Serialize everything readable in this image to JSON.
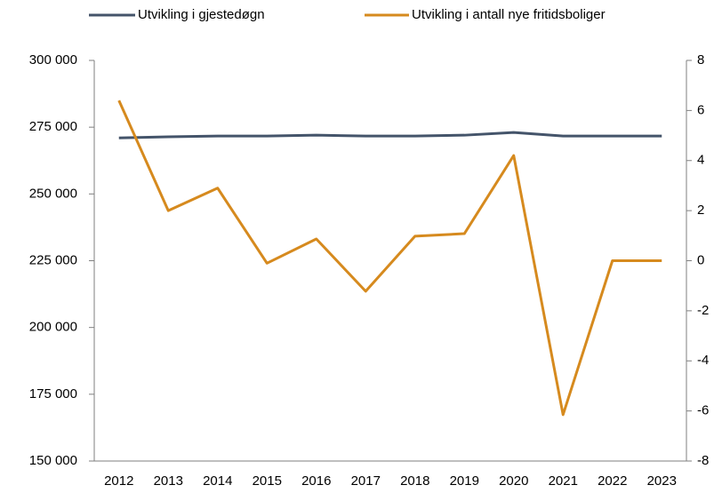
{
  "chart_data": {
    "type": "line",
    "categories": [
      "2012",
      "2013",
      "2014",
      "2015",
      "2016",
      "2017",
      "2018",
      "2019",
      "2020",
      "2021",
      "2022",
      "2023"
    ],
    "series": [
      {
        "name": "Utvikling i gjestedøgn",
        "color": "#44546a",
        "axis": "y",
        "values": [
          271000,
          271400,
          271700,
          271700,
          272000,
          271700,
          271700,
          272000,
          273000,
          271700,
          271700,
          271700
        ]
      },
      {
        "name": "Utvikling i antall nye fritidsboliger",
        "color": "#d68a1e",
        "axis": "y2",
        "values": [
          6.4,
          2.0,
          2.9,
          -0.1,
          0.87,
          -1.22,
          0.98,
          1.08,
          4.2,
          -6.15,
          0,
          0
        ]
      }
    ],
    "ylim": [
      150000,
      300000
    ],
    "yticks": [
      {
        "value": 150000,
        "label": "150 000"
      },
      {
        "value": 175000,
        "label": "175 000"
      },
      {
        "value": 200000,
        "label": "200 000"
      },
      {
        "value": 225000,
        "label": "225 000"
      },
      {
        "value": 250000,
        "label": "250 000"
      },
      {
        "value": 275000,
        "label": "275 000"
      },
      {
        "value": 300000,
        "label": "300 000"
      }
    ],
    "y2lim": [
      -8,
      8
    ],
    "y2ticks": [
      -8,
      -6,
      -4,
      -2,
      0,
      2,
      4,
      6,
      8
    ],
    "legend": "top",
    "grid": false
  }
}
